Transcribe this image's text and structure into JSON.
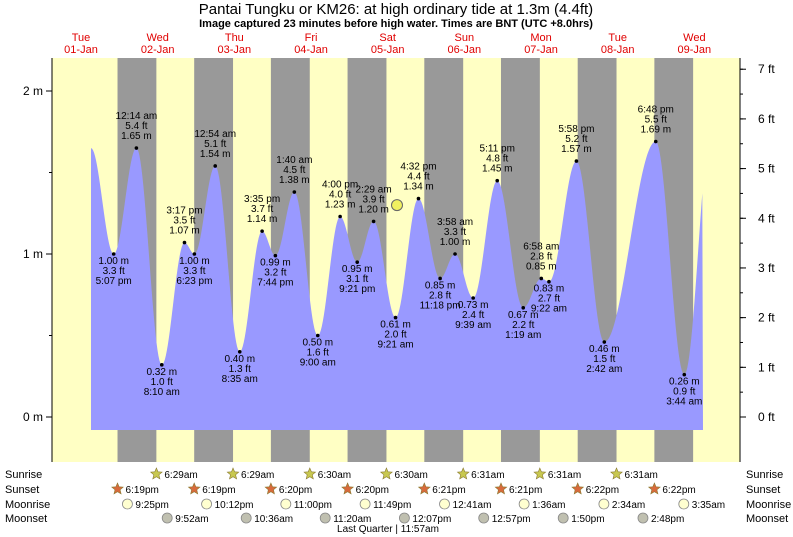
{
  "header": {
    "title": "Pantai Tungku or KM26: at high  ordinary tide at 1.3m (4.4ft)",
    "subtitle": "Image captured 23 minutes before high water. Times are BNT (UTC +8.0hrs)"
  },
  "days": [
    {
      "dow": "Tue",
      "date": "01-Jan"
    },
    {
      "dow": "Wed",
      "date": "02-Jan"
    },
    {
      "dow": "Thu",
      "date": "03-Jan"
    },
    {
      "dow": "Fri",
      "date": "04-Jan"
    },
    {
      "dow": "Sat",
      "date": "05-Jan"
    },
    {
      "dow": "Sun",
      "date": "06-Jan"
    },
    {
      "dow": "Mon",
      "date": "07-Jan"
    },
    {
      "dow": "Tue",
      "date": "08-Jan"
    },
    {
      "dow": "Wed",
      "date": "09-Jan"
    }
  ],
  "axis_left": [
    "0 m",
    "1 m",
    "2 m"
  ],
  "axis_right": [
    "0 ft",
    "1 ft",
    "2 ft",
    "3 ft",
    "4 ft",
    "5 ft",
    "6 ft",
    "7 ft"
  ],
  "colors": {
    "day": "#ffffc4",
    "night": "#999999",
    "water": "#9999ff",
    "day_label": "#e00000",
    "sun": "#c8c850",
    "sunset": "#d86a3c",
    "moonrise": "#ffffd0",
    "moonset": "#c0c0b0",
    "marker": "#f0f060"
  },
  "chart_data": {
    "type": "area",
    "title": "Pantai Tungku or KM26: at high  ordinary tide at 1.3m (4.4ft)",
    "subtitle": "Image captured 23 minutes before high water. Times are BNT (UTC +8.0hrs)",
    "ylabel_left": "m",
    "ylabel_right": "ft",
    "ylim_m": [
      -0.2,
      2.2
    ],
    "current_level_m": 1.3,
    "tides": [
      {
        "day": 0,
        "time": "5:07 pm",
        "hour": 17.12,
        "m": 1.0,
        "m_text": "1.00 m",
        "ft_text": "3.3 ft",
        "type": "low"
      },
      {
        "day": 1,
        "time": "12:14 am",
        "hour": 0.23,
        "m": 1.65,
        "m_text": "1.65 m",
        "ft_text": "5.4 ft",
        "type": "high"
      },
      {
        "day": 1,
        "time": "8:10 am",
        "hour": 8.17,
        "m": 0.32,
        "m_text": "0.32 m",
        "ft_text": "1.0 ft",
        "type": "low"
      },
      {
        "day": 1,
        "time": "3:17 pm",
        "hour": 15.28,
        "m": 1.07,
        "m_text": "1.07 m",
        "ft_text": "3.5 ft",
        "type": "high"
      },
      {
        "day": 1,
        "time": "6:23 pm",
        "hour": 18.38,
        "m": 1.0,
        "m_text": "1.00 m",
        "ft_text": "3.3 ft",
        "type": "low"
      },
      {
        "day": 2,
        "time": "12:54 am",
        "hour": 0.9,
        "m": 1.54,
        "m_text": "1.54 m",
        "ft_text": "5.1 ft",
        "type": "high"
      },
      {
        "day": 2,
        "time": "8:35 am",
        "hour": 8.58,
        "m": 0.4,
        "m_text": "0.40 m",
        "ft_text": "1.3 ft",
        "type": "low"
      },
      {
        "day": 2,
        "time": "3:35 pm",
        "hour": 15.58,
        "m": 1.14,
        "m_text": "1.14 m",
        "ft_text": "3.7 ft",
        "type": "high"
      },
      {
        "day": 2,
        "time": "7:44 pm",
        "hour": 19.73,
        "m": 0.99,
        "m_text": "0.99 m",
        "ft_text": "3.2 ft",
        "type": "low"
      },
      {
        "day": 3,
        "time": "1:40 am",
        "hour": 1.67,
        "m": 1.38,
        "m_text": "1.38 m",
        "ft_text": "4.5 ft",
        "type": "high"
      },
      {
        "day": 3,
        "time": "9:00 am",
        "hour": 9.0,
        "m": 0.5,
        "m_text": "0.50 m",
        "ft_text": "1.6 ft",
        "type": "low"
      },
      {
        "day": 3,
        "time": "4:00 pm",
        "hour": 16.0,
        "m": 1.23,
        "m_text": "1.23 m",
        "ft_text": "4.0 ft",
        "type": "high"
      },
      {
        "day": 3,
        "time": "9:21 pm",
        "hour": 21.35,
        "m": 0.95,
        "m_text": "0.95 m",
        "ft_text": "3.1 ft",
        "type": "low"
      },
      {
        "day": 4,
        "time": "2:29 am",
        "hour": 2.48,
        "m": 1.2,
        "m_text": "1.20 m",
        "ft_text": "3.9 ft",
        "type": "high"
      },
      {
        "day": 4,
        "time": "9:21 am",
        "hour": 9.35,
        "m": 0.61,
        "m_text": "0.61 m",
        "ft_text": "2.0 ft",
        "type": "low"
      },
      {
        "day": 4,
        "time": "4:32 pm",
        "hour": 16.53,
        "m": 1.34,
        "m_text": "1.34 m",
        "ft_text": "4.4 ft",
        "type": "high"
      },
      {
        "day": 4,
        "time": "11:18 pm",
        "hour": 23.3,
        "m": 0.85,
        "m_text": "0.85 m",
        "ft_text": "2.8 ft",
        "type": "low"
      },
      {
        "day": 5,
        "time": "3:58 am",
        "hour": 3.97,
        "m": 1.0,
        "m_text": "1.00 m",
        "ft_text": "3.3 ft",
        "type": "high"
      },
      {
        "day": 5,
        "time": "9:39 am",
        "hour": 9.65,
        "m": 0.73,
        "m_text": "0.73 m",
        "ft_text": "2.4 ft",
        "type": "low"
      },
      {
        "day": 5,
        "time": "5:11 pm",
        "hour": 17.18,
        "m": 1.45,
        "m_text": "1.45 m",
        "ft_text": "4.8 ft",
        "type": "high"
      },
      {
        "day": 6,
        "time": "1:19 am",
        "hour": 1.32,
        "m": 0.67,
        "m_text": "0.67 m",
        "ft_text": "2.2 ft",
        "type": "low"
      },
      {
        "day": 6,
        "time": "6:58 am",
        "hour": 6.97,
        "m": 0.85,
        "m_text": "0.85 m",
        "ft_text": "2.8 ft",
        "type": "high"
      },
      {
        "day": 6,
        "time": "9:22 am",
        "hour": 9.37,
        "m": 0.83,
        "m_text": "0.83 m",
        "ft_text": "2.7 ft",
        "type": "low"
      },
      {
        "day": 6,
        "time": "5:58 pm",
        "hour": 17.97,
        "m": 1.57,
        "m_text": "1.57 m",
        "ft_text": "5.2 ft",
        "type": "high"
      },
      {
        "day": 7,
        "time": "2:42 am",
        "hour": 2.7,
        "m": 0.46,
        "m_text": "0.46 m",
        "ft_text": "1.5 ft",
        "type": "low"
      },
      {
        "day": 7,
        "time": "6:48 pm",
        "hour": 18.8,
        "m": 1.69,
        "m_text": "1.69 m",
        "ft_text": "5.5 ft",
        "type": "high"
      },
      {
        "day": 8,
        "time": "3:44 am",
        "hour": 3.73,
        "m": 0.26,
        "m_text": "0.26 m",
        "ft_text": "0.9 ft",
        "type": "low"
      }
    ]
  },
  "almanac": {
    "labels": {
      "sunrise": "Sunrise",
      "sunset": "Sunset",
      "moonrise": "Moonrise",
      "moonset": "Moonset"
    },
    "sunrise": [
      {
        "day": 1,
        "hour": 6.48,
        "text": "6:29am"
      },
      {
        "day": 2,
        "hour": 6.48,
        "text": "6:29am"
      },
      {
        "day": 3,
        "hour": 6.5,
        "text": "6:30am"
      },
      {
        "day": 4,
        "hour": 6.5,
        "text": "6:30am"
      },
      {
        "day": 5,
        "hour": 6.52,
        "text": "6:31am"
      },
      {
        "day": 6,
        "hour": 6.52,
        "text": "6:31am"
      },
      {
        "day": 7,
        "hour": 6.52,
        "text": "6:31am"
      }
    ],
    "sunset": [
      {
        "day": 0,
        "hour": 18.32,
        "text": "6:19pm"
      },
      {
        "day": 1,
        "hour": 18.32,
        "text": "6:19pm"
      },
      {
        "day": 2,
        "hour": 18.33,
        "text": "6:20pm"
      },
      {
        "day": 3,
        "hour": 18.33,
        "text": "6:20pm"
      },
      {
        "day": 4,
        "hour": 18.35,
        "text": "6:21pm"
      },
      {
        "day": 5,
        "hour": 18.35,
        "text": "6:21pm"
      },
      {
        "day": 6,
        "hour": 18.37,
        "text": "6:22pm"
      },
      {
        "day": 7,
        "hour": 18.37,
        "text": "6:22pm"
      }
    ],
    "moonrise": [
      {
        "day": 0,
        "hour": 21.42,
        "text": "9:25pm"
      },
      {
        "day": 1,
        "hour": 22.2,
        "text": "10:12pm"
      },
      {
        "day": 2,
        "hour": 23.0,
        "text": "11:00pm"
      },
      {
        "day": 3,
        "hour": 23.82,
        "text": "11:49pm"
      },
      {
        "day": 5,
        "hour": 0.68,
        "text": "12:41am"
      },
      {
        "day": 6,
        "hour": 1.6,
        "text": "1:36am"
      },
      {
        "day": 7,
        "hour": 2.57,
        "text": "2:34am"
      },
      {
        "day": 8,
        "hour": 3.58,
        "text": "3:35am"
      }
    ],
    "moonset": [
      {
        "day": 1,
        "hour": 9.87,
        "text": "9:52am"
      },
      {
        "day": 2,
        "hour": 10.6,
        "text": "10:36am"
      },
      {
        "day": 3,
        "hour": 11.33,
        "text": "11:20am"
      },
      {
        "day": 4,
        "hour": 12.12,
        "text": "12:07pm"
      },
      {
        "day": 5,
        "hour": 12.95,
        "text": "12:57pm"
      },
      {
        "day": 6,
        "hour": 13.83,
        "text": "1:50pm"
      },
      {
        "day": 7,
        "hour": 14.8,
        "text": "2:48pm"
      }
    ],
    "moon_phase": "Last Quarter | 11:57am"
  }
}
